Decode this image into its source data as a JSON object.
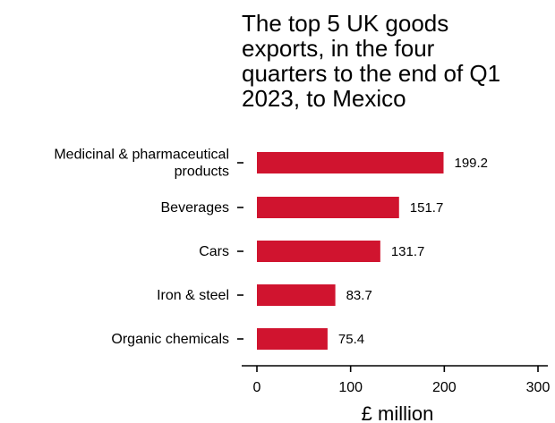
{
  "chart_data": {
    "type": "bar",
    "orientation": "horizontal",
    "title": "The top 5 UK goods\nexports, in the four\nquarters to the end of Q1\n2023, to Mexico",
    "categories": [
      [
        "Medicinal & pharmaceutical",
        "products"
      ],
      [
        "Beverages"
      ],
      [
        "Cars"
      ],
      [
        "Iron & steel"
      ],
      [
        "Organic chemicals"
      ]
    ],
    "values": [
      199.2,
      151.7,
      131.7,
      83.7,
      75.4
    ],
    "value_labels": [
      "199.2",
      "151.7",
      "131.7",
      "83.7",
      "75.4"
    ],
    "xlabel": "£ million",
    "xlim": [
      0,
      300
    ],
    "xticks": [
      0,
      100,
      200,
      300
    ],
    "bar_color": "#D0142F",
    "grid": false
  }
}
